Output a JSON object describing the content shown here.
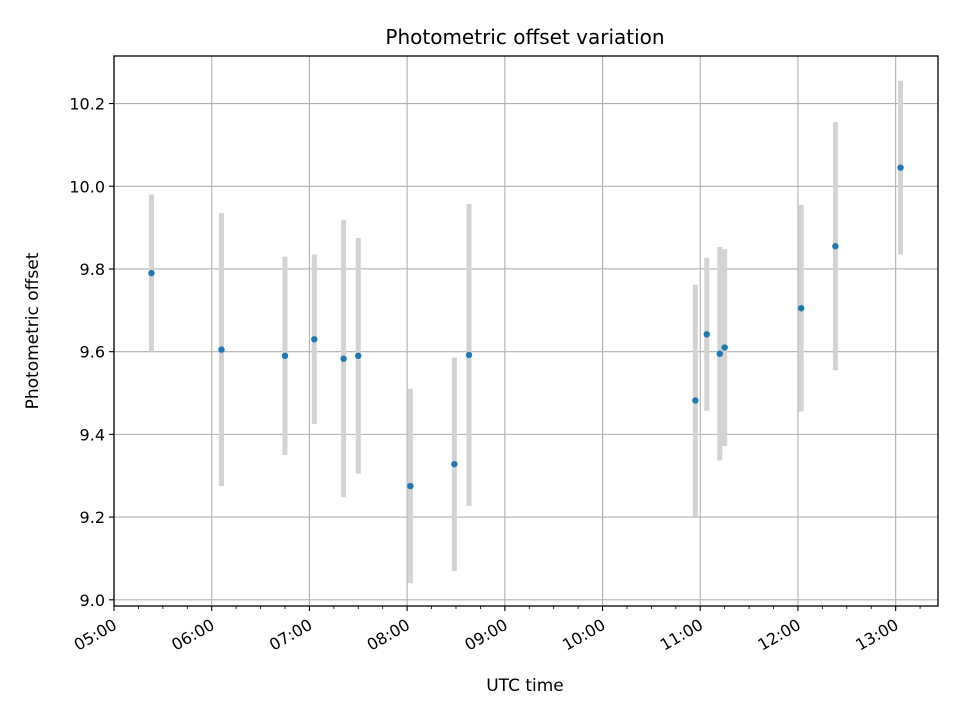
{
  "chart_data": {
    "type": "scatter",
    "title": "Photometric offset variation",
    "xlabel": "UTC time",
    "ylabel": "Photometric offset",
    "x_axis_type": "time",
    "xlim": [
      "05:00",
      "13:26"
    ],
    "ylim": [
      8.985,
      10.315
    ],
    "xticks": [
      "05:00",
      "06:00",
      "07:00",
      "08:00",
      "09:00",
      "10:00",
      "11:00",
      "12:00",
      "13:00"
    ],
    "yticks": [
      9.0,
      9.2,
      9.4,
      9.6,
      9.8,
      10.0,
      10.2
    ],
    "ytick_labels": [
      "9.0",
      "9.2",
      "9.4",
      "9.6",
      "9.8",
      "10.0",
      "10.2"
    ],
    "grid": true,
    "marker_color": "#1f77b4",
    "errorbar_color": "#d3d3d3",
    "points": [
      {
        "x": "05:23",
        "y": 9.79,
        "err": 0.19
      },
      {
        "x": "06:06",
        "y": 9.605,
        "err": 0.33
      },
      {
        "x": "06:45",
        "y": 9.59,
        "err": 0.24
      },
      {
        "x": "07:03",
        "y": 9.63,
        "err": 0.205
      },
      {
        "x": "07:21",
        "y": 9.583,
        "err": 0.335
      },
      {
        "x": "07:30",
        "y": 9.59,
        "err": 0.285
      },
      {
        "x": "08:02",
        "y": 9.275,
        "err": 0.235
      },
      {
        "x": "08:29",
        "y": 9.328,
        "err": 0.258
      },
      {
        "x": "08:38",
        "y": 9.592,
        "err": 0.365
      },
      {
        "x": "10:57",
        "y": 9.482,
        "err": 0.28
      },
      {
        "x": "11:04",
        "y": 9.642,
        "err": 0.185
      },
      {
        "x": "11:12",
        "y": 9.595,
        "err": 0.258
      },
      {
        "x": "11:15",
        "y": 9.61,
        "err": 0.238
      },
      {
        "x": "12:02",
        "y": 9.705,
        "err": 0.25
      },
      {
        "x": "12:23",
        "y": 9.855,
        "err": 0.3
      },
      {
        "x": "13:03",
        "y": 10.045,
        "err": 0.21
      }
    ]
  }
}
